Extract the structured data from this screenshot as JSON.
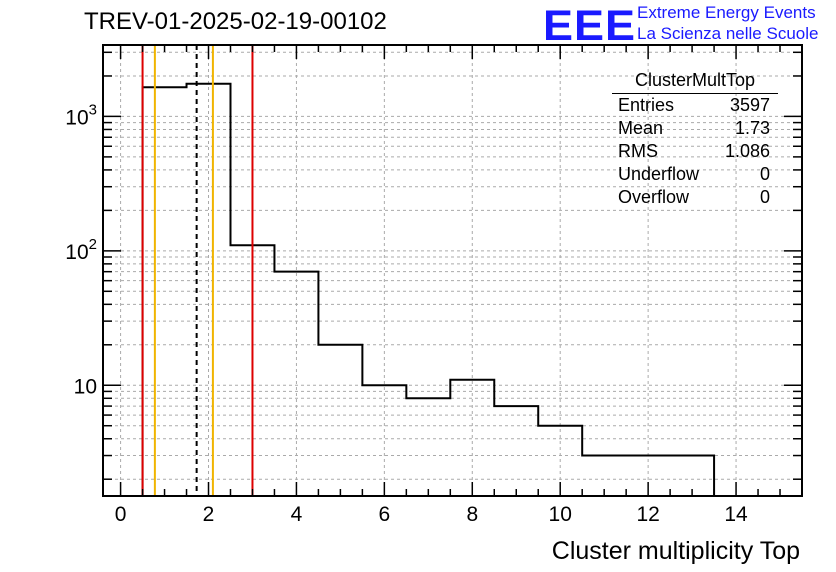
{
  "header": {
    "run_title": "TREV-01-2025-02-19-00102",
    "logo_text": "EEE",
    "logo_line1": "Extreme Energy Events",
    "logo_line2": "La Scienza nelle Scuole",
    "logo_color": "#1a1aff"
  },
  "stats": {
    "title": "ClusterMultTop",
    "rows": [
      {
        "label": "Entries",
        "value": "3597"
      },
      {
        "label": "Mean",
        "value": "1.73"
      },
      {
        "label": "RMS",
        "value": "1.086"
      },
      {
        "label": "Underflow",
        "value": "0"
      },
      {
        "label": "Overflow",
        "value": "0"
      }
    ]
  },
  "chart_data": {
    "type": "histogram",
    "title": "TREV-01-2025-02-19-00102",
    "xlabel": "Cluster multiplicity Top",
    "ylabel": "",
    "xlim": [
      -0.4,
      15.5
    ],
    "ylim": [
      1.5,
      3400
    ],
    "yscale": "log",
    "grid": true,
    "x_ticks": [
      0,
      2,
      4,
      6,
      8,
      10,
      12,
      14
    ],
    "y_ticks": [
      {
        "value": 10,
        "label": "10"
      },
      {
        "value": 100,
        "label": "10^2"
      },
      {
        "value": 1000,
        "label": "10^3"
      }
    ],
    "bins": [
      {
        "lo": 0.5,
        "hi": 1.5,
        "count": 1650
      },
      {
        "lo": 1.5,
        "hi": 2.5,
        "count": 1750
      },
      {
        "lo": 2.5,
        "hi": 3.5,
        "count": 110
      },
      {
        "lo": 3.5,
        "hi": 4.5,
        "count": 70
      },
      {
        "lo": 4.5,
        "hi": 5.5,
        "count": 20
      },
      {
        "lo": 5.5,
        "hi": 6.5,
        "count": 10
      },
      {
        "lo": 6.5,
        "hi": 7.5,
        "count": 8
      },
      {
        "lo": 7.5,
        "hi": 8.5,
        "count": 11
      },
      {
        "lo": 8.5,
        "hi": 9.5,
        "count": 7
      },
      {
        "lo": 9.5,
        "hi": 10.5,
        "count": 5
      },
      {
        "lo": 10.5,
        "hi": 13.5,
        "count": 3
      }
    ],
    "vertical_lines": [
      {
        "x": 0.5,
        "color": "#dd0000",
        "style": "solid"
      },
      {
        "x": 0.78,
        "color": "#f0b400",
        "style": "solid"
      },
      {
        "x": 1.73,
        "color": "#000000",
        "style": "dashed"
      },
      {
        "x": 2.1,
        "color": "#f0b400",
        "style": "solid"
      },
      {
        "x": 3.0,
        "color": "#dd0000",
        "style": "solid"
      }
    ]
  }
}
